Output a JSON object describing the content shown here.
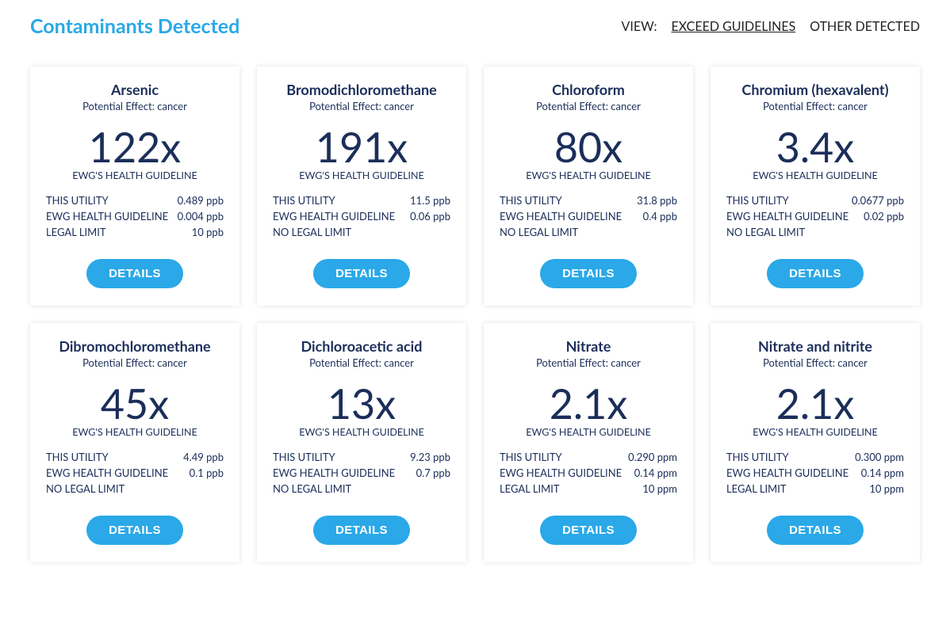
{
  "colors": {
    "accent": "#2aa8e8",
    "text_dark": "#1b2e5a",
    "card_bg": "#ffffff",
    "body_bg": "#ffffff"
  },
  "header": {
    "title": "Contaminants Detected",
    "view_label": "VIEW:",
    "view_active": "EXCEED GUIDELINES",
    "view_other": "OTHER DETECTED"
  },
  "labels": {
    "guideline_label": "EWG'S HEALTH GUIDELINE",
    "utility_label": "THIS UTILITY",
    "ewg_label": "EWG HEALTH GUIDELINE",
    "legal_label": "LEGAL LIMIT",
    "no_legal": "NO LEGAL LIMIT",
    "details_btn": "DETAILS",
    "effect_prefix": "Potential Effect: "
  },
  "cards": [
    {
      "name": "Arsenic",
      "effect": "cancer",
      "multiplier": "122x",
      "utility": "0.489 ppb",
      "ewg": "0.004 ppb",
      "legal": "10 ppb"
    },
    {
      "name": "Bromodichloromethane",
      "effect": "cancer",
      "multiplier": "191x",
      "utility": "11.5 ppb",
      "ewg": "0.06 ppb",
      "legal": null
    },
    {
      "name": "Chloroform",
      "effect": "cancer",
      "multiplier": "80x",
      "utility": "31.8 ppb",
      "ewg": "0.4 ppb",
      "legal": null
    },
    {
      "name": "Chromium (hexavalent)",
      "effect": "cancer",
      "multiplier": "3.4x",
      "utility": "0.0677 ppb",
      "ewg": "0.02 ppb",
      "legal": null
    },
    {
      "name": "Dibromochloromethane",
      "effect": "cancer",
      "multiplier": "45x",
      "utility": "4.49 ppb",
      "ewg": "0.1 ppb",
      "legal": null
    },
    {
      "name": "Dichloroacetic acid",
      "effect": "cancer",
      "multiplier": "13x",
      "utility": "9.23 ppb",
      "ewg": "0.7 ppb",
      "legal": null
    },
    {
      "name": "Nitrate",
      "effect": "cancer",
      "multiplier": "2.1x",
      "utility": "0.290 ppm",
      "ewg": "0.14 ppm",
      "legal": "10 ppm"
    },
    {
      "name": "Nitrate and nitrite",
      "effect": "cancer",
      "multiplier": "2.1x",
      "utility": "0.300 ppm",
      "ewg": "0.14 ppm",
      "legal": "10 ppm"
    }
  ]
}
